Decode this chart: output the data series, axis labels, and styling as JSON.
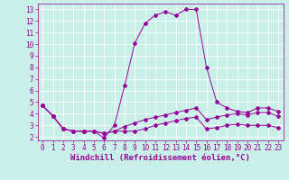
{
  "title": "",
  "xlabel": "Windchill (Refroidissement éolien,°C)",
  "ylabel": "",
  "xlim": [
    -0.5,
    23.5
  ],
  "ylim": [
    1.7,
    13.5
  ],
  "xticks": [
    0,
    1,
    2,
    3,
    4,
    5,
    6,
    7,
    8,
    9,
    10,
    11,
    12,
    13,
    14,
    15,
    16,
    17,
    18,
    19,
    20,
    21,
    22,
    23
  ],
  "yticks": [
    2,
    3,
    4,
    5,
    6,
    7,
    8,
    9,
    10,
    11,
    12,
    13
  ],
  "background_color": "#c8f0e8",
  "grid_color": "#ffffff",
  "line_color": "#990099",
  "line1_x": [
    0,
    1,
    2,
    3,
    4,
    5,
    6,
    7,
    8,
    9,
    10,
    11,
    12,
    13,
    14,
    15,
    16,
    17,
    18,
    19,
    20,
    21,
    22,
    23
  ],
  "line1_y": [
    4.7,
    3.8,
    2.7,
    2.5,
    2.5,
    2.5,
    2.3,
    2.5,
    2.5,
    2.5,
    2.7,
    3.0,
    3.2,
    3.4,
    3.6,
    3.7,
    2.7,
    2.8,
    3.0,
    3.1,
    3.0,
    3.0,
    3.0,
    2.8
  ],
  "line2_x": [
    0,
    1,
    2,
    3,
    4,
    5,
    6,
    7,
    8,
    9,
    10,
    11,
    12,
    13,
    14,
    15,
    16,
    17,
    18,
    19,
    20,
    21,
    22,
    23
  ],
  "line2_y": [
    4.7,
    3.8,
    2.7,
    2.5,
    2.5,
    2.5,
    1.9,
    3.0,
    6.4,
    10.1,
    11.8,
    12.5,
    12.8,
    12.5,
    13.0,
    13.0,
    8.0,
    5.0,
    4.5,
    4.2,
    4.1,
    4.5,
    4.5,
    4.2
  ],
  "line3_x": [
    0,
    1,
    2,
    3,
    4,
    5,
    6,
    7,
    8,
    9,
    10,
    11,
    12,
    13,
    14,
    15,
    16,
    17,
    18,
    19,
    20,
    21,
    22,
    23
  ],
  "line3_y": [
    4.7,
    3.8,
    2.7,
    2.5,
    2.5,
    2.5,
    2.3,
    2.5,
    2.9,
    3.2,
    3.5,
    3.7,
    3.9,
    4.1,
    4.3,
    4.5,
    3.5,
    3.7,
    3.9,
    4.0,
    3.9,
    4.1,
    4.1,
    3.8
  ],
  "font_color": "#990099",
  "tick_fontsize": 5.5,
  "xlabel_fontsize": 6.5
}
